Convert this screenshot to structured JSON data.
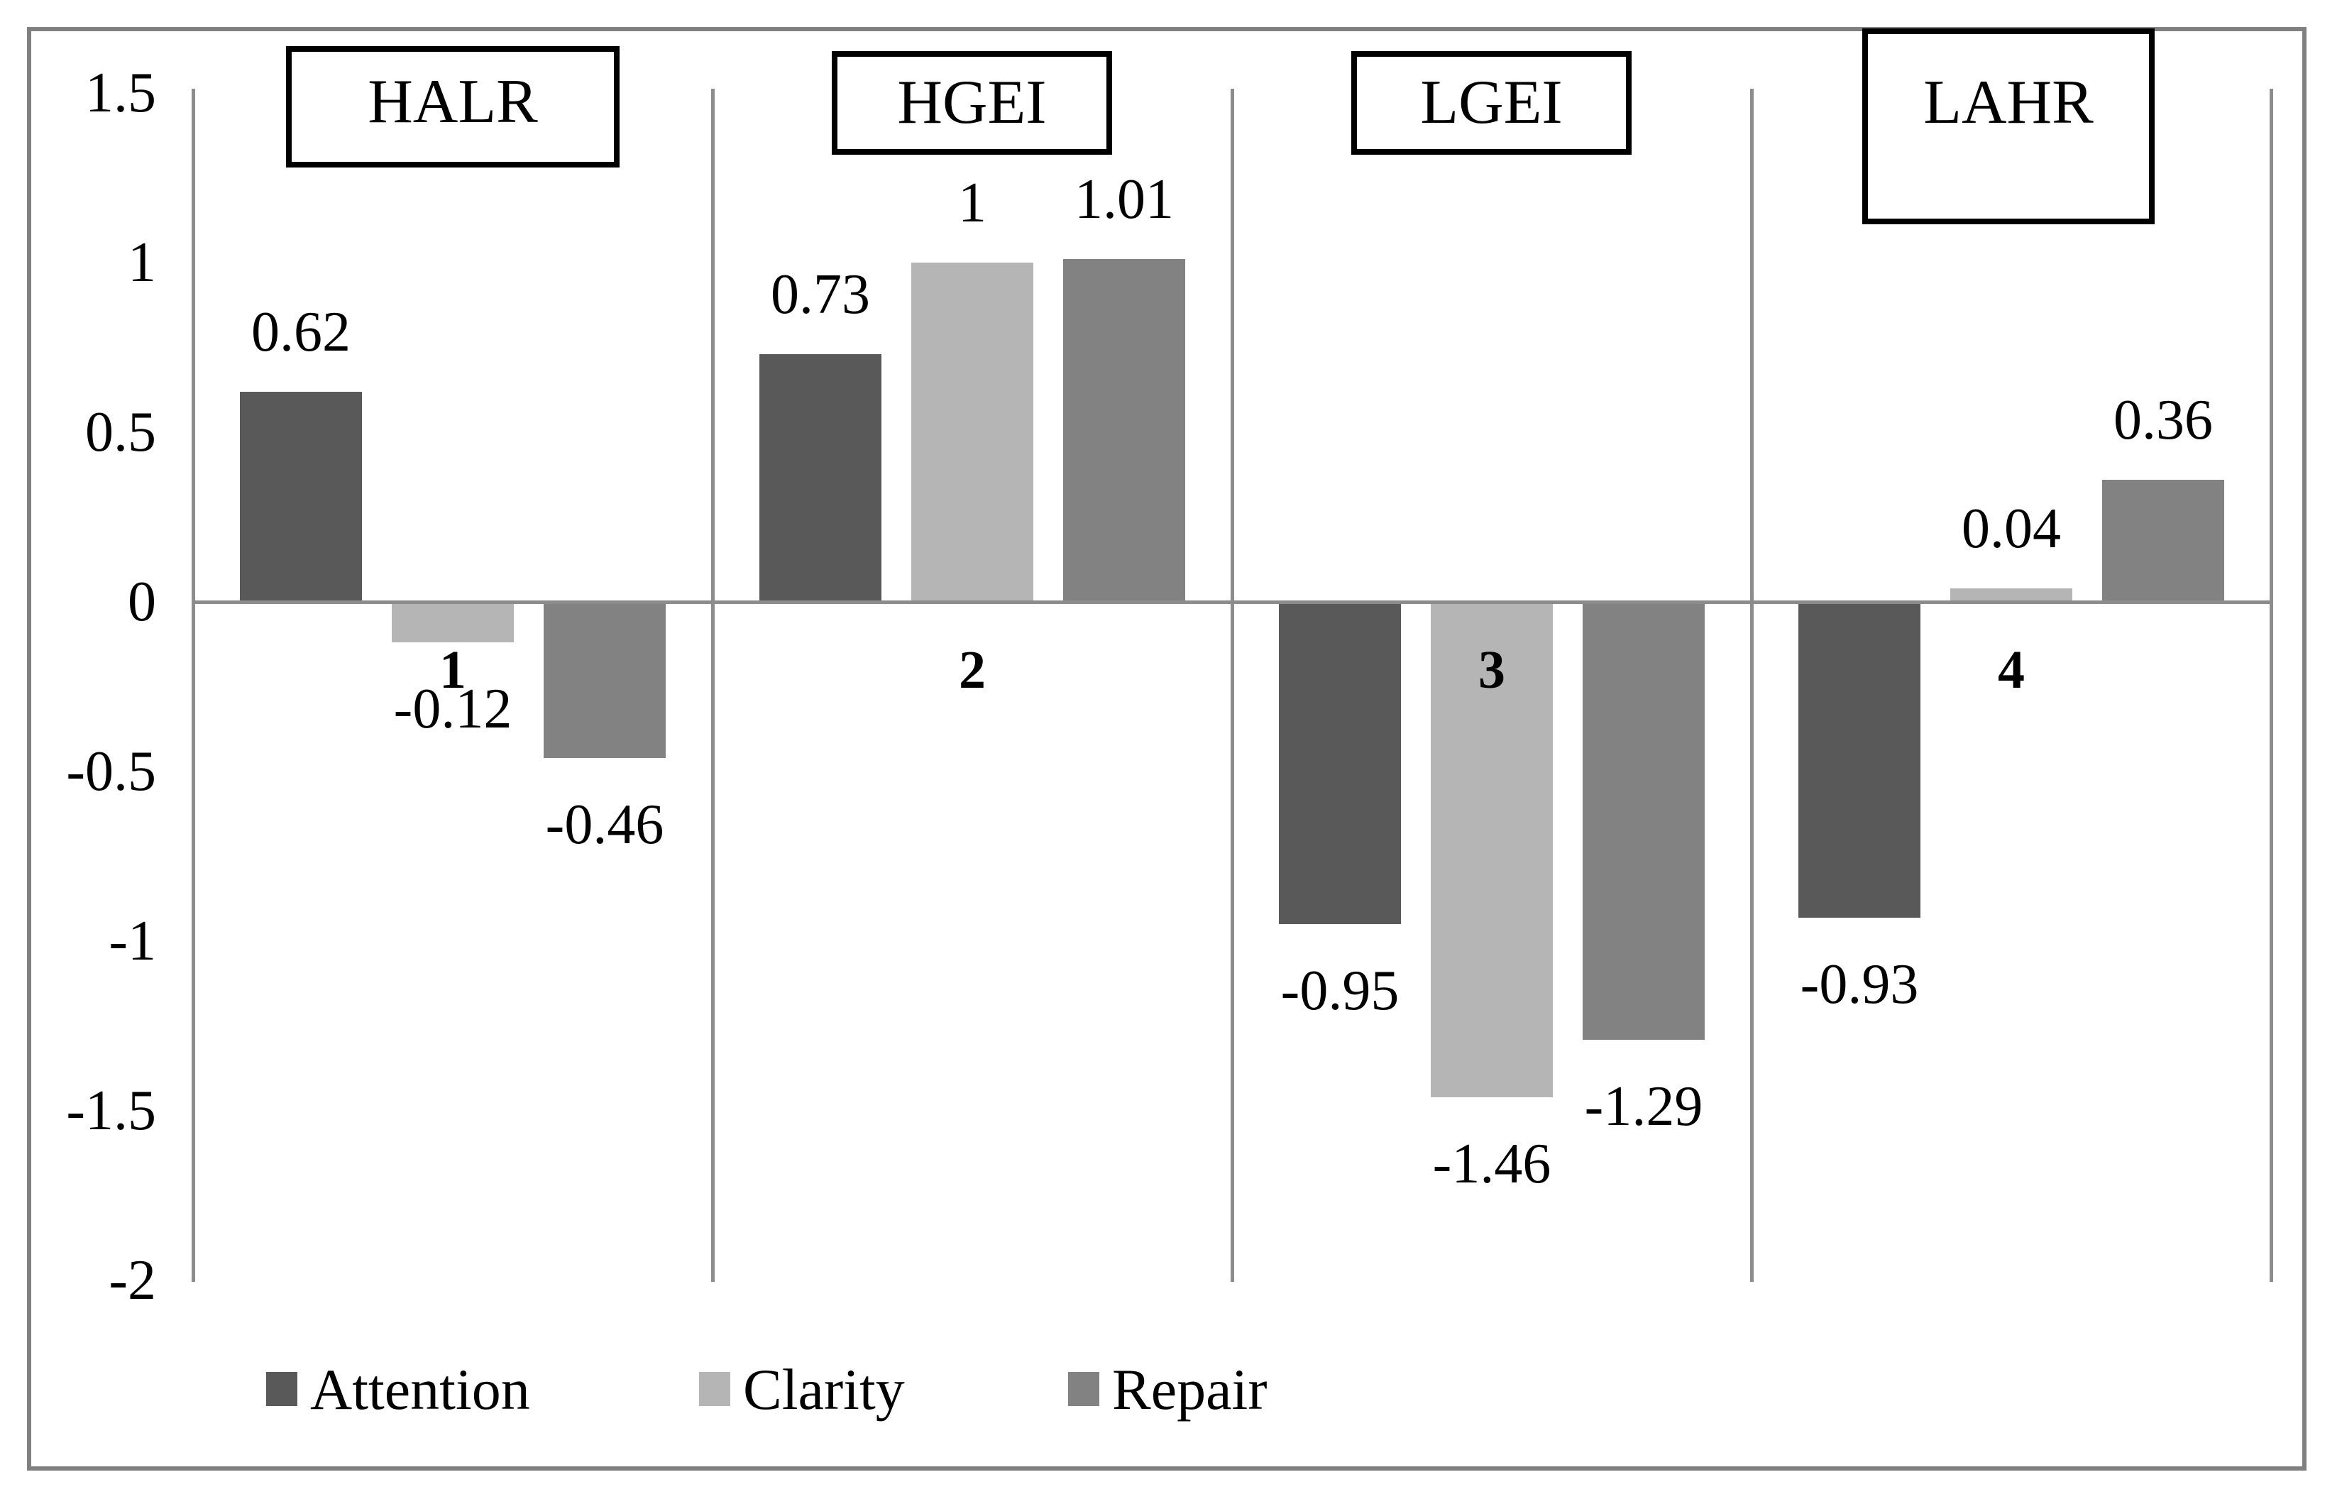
{
  "chart_data": {
    "type": "bar",
    "title": "",
    "xlabel": "",
    "ylabel": "",
    "categories": [
      "1",
      "2",
      "3",
      "4"
    ],
    "group_labels": [
      "HALR",
      "HGEI",
      "LGEI",
      "LAHR"
    ],
    "series": [
      {
        "name": "Attention",
        "color": "#595959",
        "values": [
          0.62,
          0.73,
          -0.95,
          -0.93
        ]
      },
      {
        "name": "Clarity",
        "color": "#b5b5b5",
        "values": [
          -0.12,
          1,
          -1.46,
          0.04
        ]
      },
      {
        "name": "Repair",
        "color": "#828282",
        "values": [
          -0.46,
          1.01,
          -1.29,
          0.36
        ]
      }
    ],
    "data_labels": [
      [
        "0.62",
        "-0.12",
        "-0.46"
      ],
      [
        "0.73",
        "1",
        "1.01"
      ],
      [
        "-0.95",
        "-1.46",
        "-1.29"
      ],
      [
        "-0.93",
        "0.04",
        "0.36"
      ]
    ],
    "y_ticks": [
      "1.5",
      "1",
      "0.5",
      "0",
      "-0.5",
      "-1",
      "-1.5",
      "-2"
    ],
    "ylim": [
      -2,
      1.5
    ],
    "grid": false,
    "legend": [
      "Attention",
      "Clarity",
      "Repair"
    ],
    "legend_position": "bottom"
  },
  "colors": {
    "attention": "#595959",
    "clarity": "#b5b5b5",
    "repair": "#828282",
    "axis_line": "#8c8c8c",
    "figure_border": "#808080",
    "box_border": "#000000",
    "text": "#000000"
  }
}
